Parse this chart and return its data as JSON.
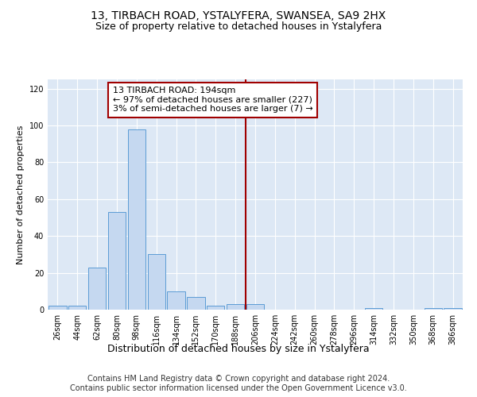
{
  "title": "13, TIRBACH ROAD, YSTALYFERA, SWANSEA, SA9 2HX",
  "subtitle": "Size of property relative to detached houses in Ystalyfera",
  "xlabel": "Distribution of detached houses by size in Ystalyfera",
  "ylabel": "Number of detached properties",
  "bin_labels": [
    "26sqm",
    "44sqm",
    "62sqm",
    "80sqm",
    "98sqm",
    "116sqm",
    "134sqm",
    "152sqm",
    "170sqm",
    "188sqm",
    "206sqm",
    "224sqm",
    "242sqm",
    "260sqm",
    "278sqm",
    "296sqm",
    "314sqm",
    "332sqm",
    "350sqm",
    "368sqm",
    "386sqm"
  ],
  "bar_values": [
    2,
    2,
    23,
    53,
    98,
    30,
    10,
    7,
    2,
    3,
    3,
    0,
    0,
    0,
    0,
    0,
    1,
    0,
    0,
    1,
    1
  ],
  "bar_color": "#c5d8f0",
  "bar_edge_color": "#5b9bd5",
  "vline_x": 9.5,
  "vline_color": "#a00000",
  "annotation_text": "13 TIRBACH ROAD: 194sqm\n← 97% of detached houses are smaller (227)\n3% of semi-detached houses are larger (7) →",
  "annotation_box_color": "#a00000",
  "ylim": [
    0,
    125
  ],
  "yticks": [
    0,
    20,
    40,
    60,
    80,
    100,
    120
  ],
  "background_color": "#dde8f5",
  "footer": "Contains HM Land Registry data © Crown copyright and database right 2024.\nContains public sector information licensed under the Open Government Licence v3.0.",
  "title_fontsize": 10,
  "subtitle_fontsize": 9,
  "xlabel_fontsize": 9,
  "ylabel_fontsize": 8,
  "tick_fontsize": 7,
  "annotation_fontsize": 8,
  "footer_fontsize": 7
}
